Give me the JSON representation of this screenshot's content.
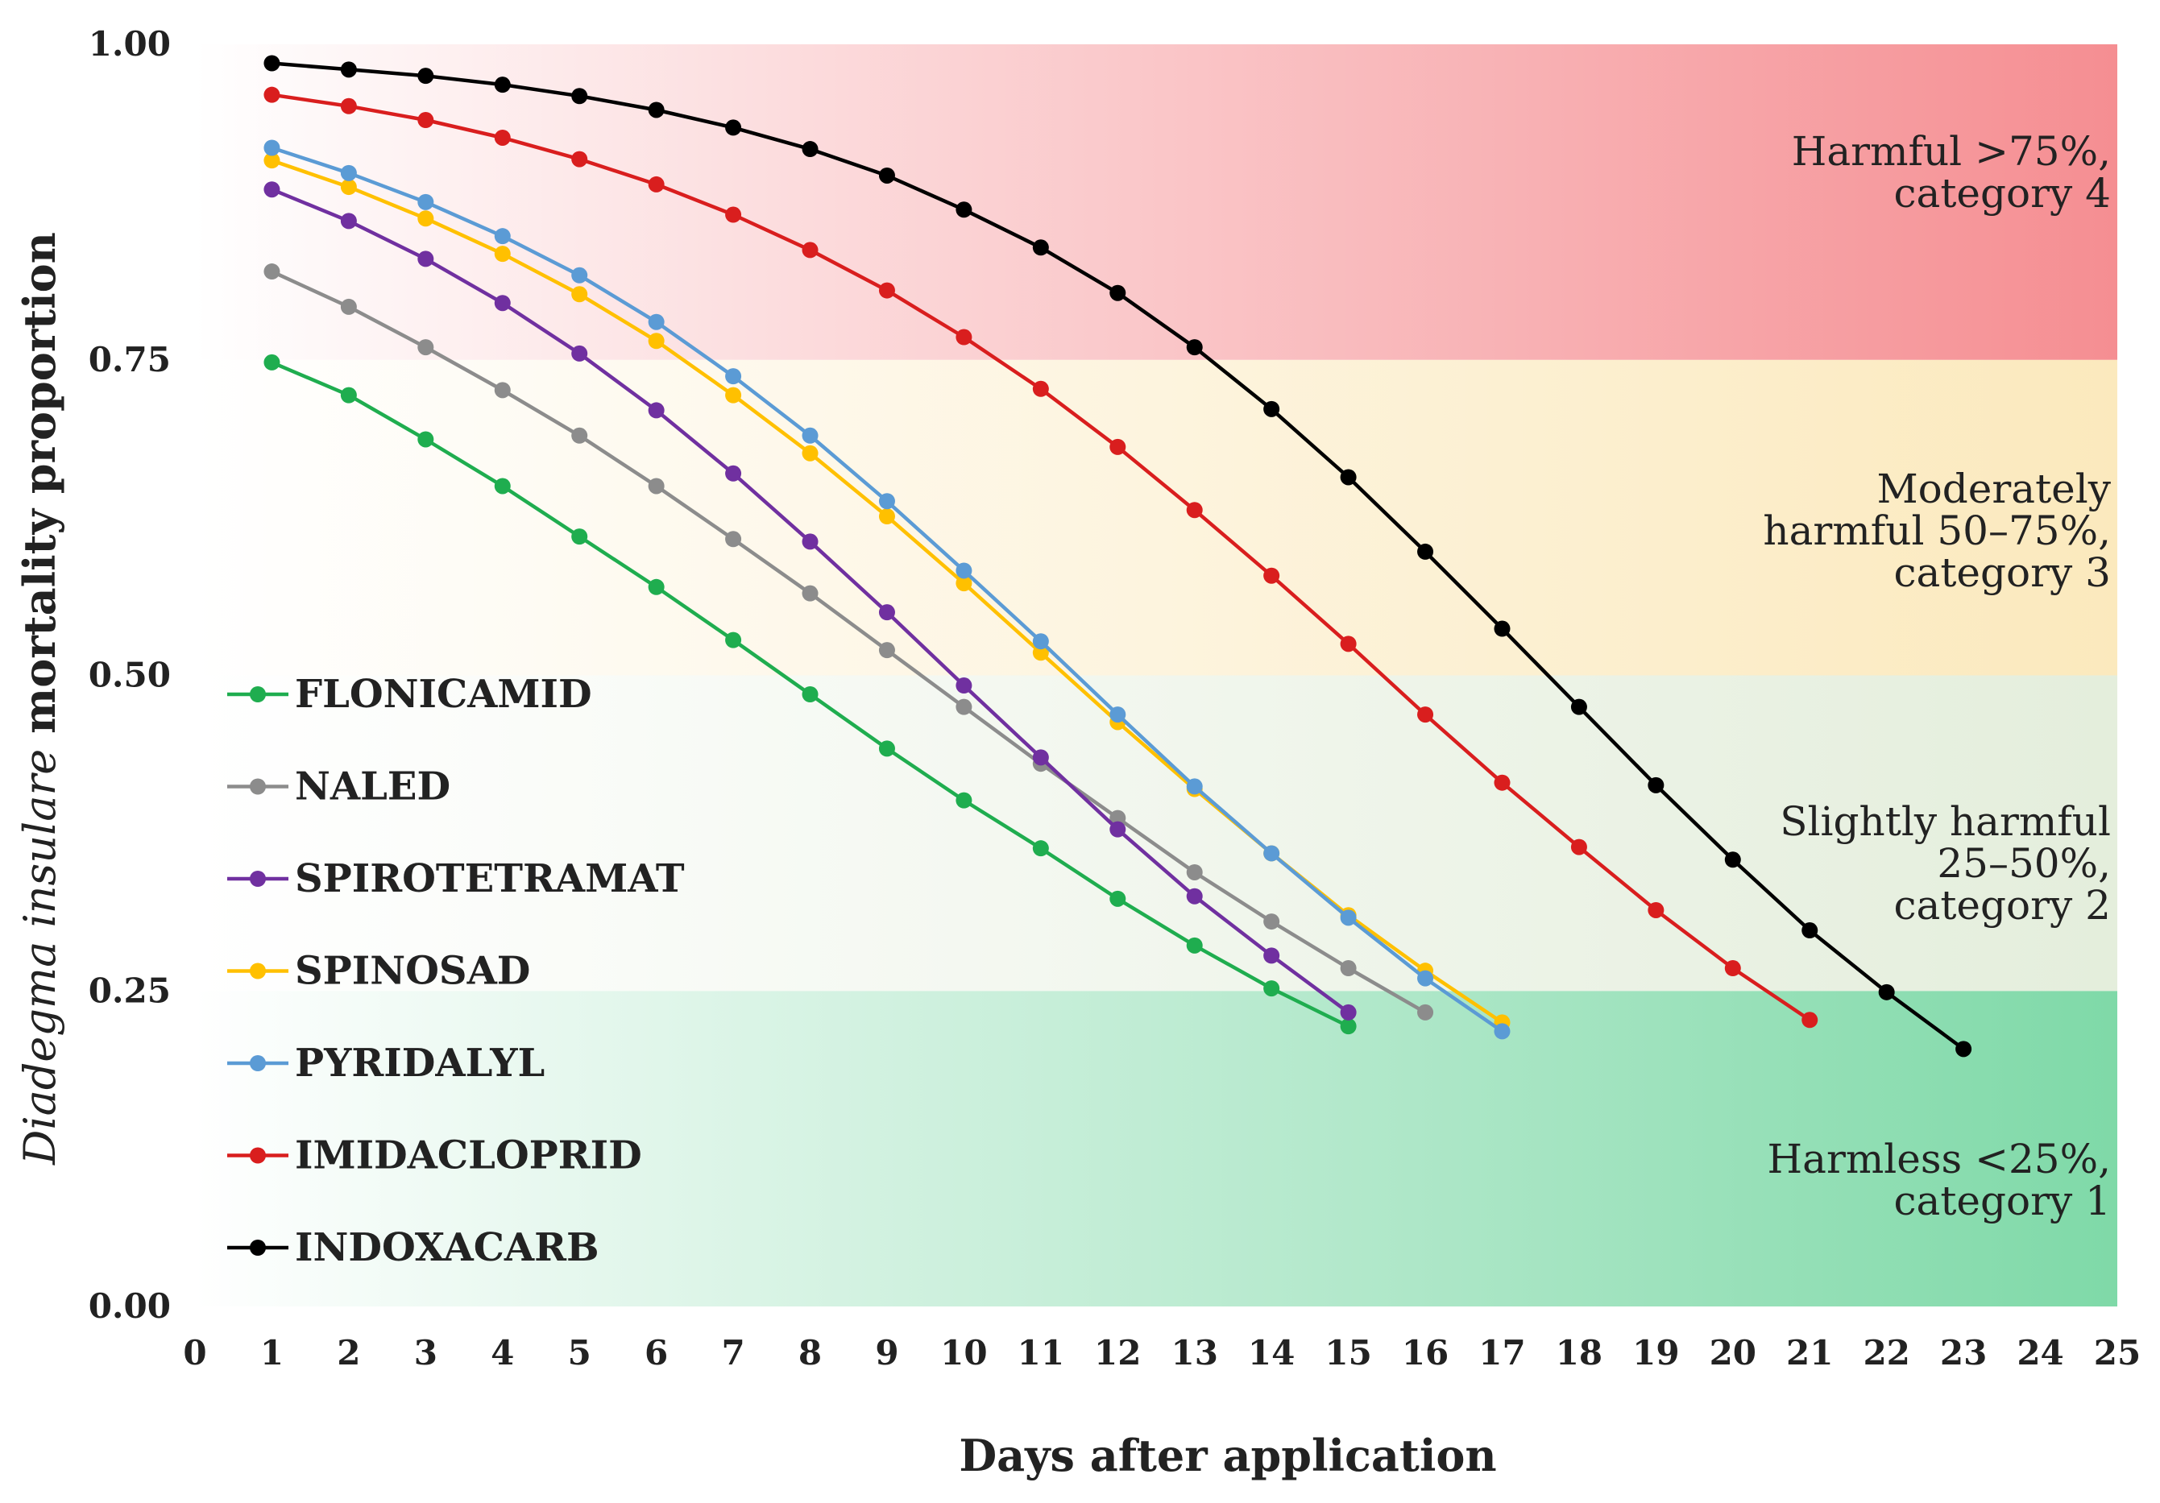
{
  "chart_data": {
    "type": "line",
    "title": "",
    "xlabel": "Days after application",
    "ylabel_italic": "Diadegma insulare",
    "ylabel_rest": "mortality proportion",
    "xlim": [
      0,
      25
    ],
    "ylim": [
      0,
      1
    ],
    "x_ticks": [
      "0",
      "1",
      "2",
      "3",
      "4",
      "5",
      "6",
      "7",
      "8",
      "9",
      "10",
      "11",
      "12",
      "13",
      "14",
      "15",
      "16",
      "17",
      "18",
      "19",
      "20",
      "21",
      "22",
      "23",
      "24",
      "25"
    ],
    "y_ticks": [
      "0.00",
      "0.25",
      "0.50",
      "0.75",
      "1.00"
    ],
    "bands": [
      {
        "lines": [
          "Harmless <25%,",
          "category 1"
        ],
        "from": 0.0,
        "to": 0.25,
        "color": "#7fd9a8"
      },
      {
        "lines": [
          "Slightly harmful",
          "25–50%,",
          "category 2"
        ],
        "from": 0.25,
        "to": 0.5,
        "color": "#e4eedc"
      },
      {
        "lines": [
          "Moderately",
          "harmful 50–75%,",
          "category 3"
        ],
        "from": 0.5,
        "to": 0.75,
        "color": "#fbe9bd"
      },
      {
        "lines": [
          "Harmful >75%,",
          "category 4"
        ],
        "from": 0.75,
        "to": 1.0,
        "color": "#f58e92"
      }
    ],
    "series": [
      {
        "name": "FLONICAMID",
        "color": "#1fad4f",
        "x": [
          1,
          2,
          3,
          4,
          5,
          6,
          7,
          8,
          9,
          10,
          11,
          12,
          13,
          14,
          15
        ],
        "values": [
          0.748,
          0.722,
          0.687,
          0.65,
          0.61,
          0.57,
          0.528,
          0.485,
          0.442,
          0.401,
          0.363,
          0.323,
          0.286,
          0.252,
          0.222
        ]
      },
      {
        "name": "NALED",
        "color": "#8c8c8c",
        "x": [
          1,
          2,
          3,
          4,
          5,
          6,
          7,
          8,
          9,
          10,
          11,
          12,
          13,
          14,
          15,
          16
        ],
        "values": [
          0.82,
          0.792,
          0.76,
          0.726,
          0.69,
          0.65,
          0.608,
          0.565,
          0.52,
          0.475,
          0.43,
          0.387,
          0.344,
          0.305,
          0.268,
          0.233
        ]
      },
      {
        "name": "SPIROTETRAMAT",
        "color": "#7030a0",
        "x": [
          1,
          2,
          3,
          4,
          5,
          6,
          7,
          8,
          9,
          10,
          11,
          12,
          13,
          14,
          15
        ],
        "values": [
          0.885,
          0.86,
          0.83,
          0.795,
          0.755,
          0.71,
          0.66,
          0.606,
          0.55,
          0.492,
          0.435,
          0.378,
          0.325,
          0.278,
          0.233
        ]
      },
      {
        "name": "SPINOSAD",
        "color": "#ffc000",
        "x": [
          1,
          2,
          3,
          4,
          5,
          6,
          7,
          8,
          9,
          10,
          11,
          12,
          13,
          14,
          15,
          16,
          17
        ],
        "values": [
          0.908,
          0.887,
          0.862,
          0.834,
          0.802,
          0.765,
          0.722,
          0.676,
          0.626,
          0.573,
          0.518,
          0.463,
          0.41,
          0.359,
          0.31,
          0.266,
          0.225
        ]
      },
      {
        "name": "PYRIDALYL",
        "color": "#5b9bd5",
        "x": [
          1,
          2,
          3,
          4,
          5,
          6,
          7,
          8,
          9,
          10,
          11,
          12,
          13,
          14,
          15,
          16,
          17
        ],
        "values": [
          0.918,
          0.898,
          0.875,
          0.848,
          0.817,
          0.78,
          0.737,
          0.69,
          0.638,
          0.583,
          0.527,
          0.469,
          0.412,
          0.359,
          0.308,
          0.26,
          0.218
        ]
      },
      {
        "name": "IMIDACLOPRID",
        "color": "#d91e1e",
        "x": [
          1,
          2,
          3,
          4,
          5,
          6,
          7,
          8,
          9,
          10,
          11,
          12,
          13,
          14,
          15,
          16,
          17,
          18,
          19,
          20,
          21
        ],
        "values": [
          0.96,
          0.951,
          0.94,
          0.926,
          0.909,
          0.889,
          0.865,
          0.837,
          0.805,
          0.768,
          0.727,
          0.681,
          0.631,
          0.579,
          0.525,
          0.469,
          0.415,
          0.364,
          0.314,
          0.268,
          0.227
        ]
      },
      {
        "name": "INDOXACARB",
        "color": "#000000",
        "x": [
          1,
          2,
          3,
          4,
          5,
          6,
          7,
          8,
          9,
          10,
          11,
          12,
          13,
          14,
          15,
          16,
          17,
          18,
          19,
          20,
          21,
          22,
          23
        ],
        "values": [
          0.985,
          0.98,
          0.975,
          0.968,
          0.959,
          0.948,
          0.934,
          0.917,
          0.896,
          0.869,
          0.839,
          0.803,
          0.76,
          0.711,
          0.657,
          0.598,
          0.537,
          0.475,
          0.413,
          0.354,
          0.298,
          0.249,
          0.204
        ]
      }
    ]
  }
}
